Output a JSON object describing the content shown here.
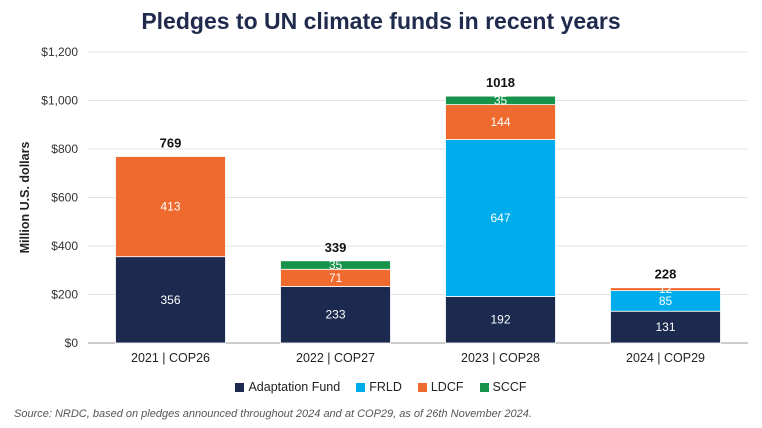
{
  "chart_data": {
    "type": "bar",
    "stacked": true,
    "title": "Pledges to UN climate funds in recent years",
    "ylabel": "Million U.S. dollars",
    "xlabel": "",
    "ylim": [
      0,
      1200
    ],
    "yticks": [
      0,
      200,
      400,
      600,
      800,
      1000,
      1200
    ],
    "ytick_labels": [
      "$0",
      "$200",
      "$400",
      "$600",
      "$800",
      "$1,000",
      "$1,200"
    ],
    "categories": [
      "2021 | COP26",
      "2022 | COP27",
      "2023 | COP28",
      "2024 | COP29"
    ],
    "series": [
      {
        "name": "Adaptation Fund",
        "color": "#1b2a4e",
        "values": [
          356,
          233,
          192,
          131
        ],
        "labels": [
          "356",
          "233",
          "192",
          "131"
        ]
      },
      {
        "name": "FRLD",
        "color": "#00adec",
        "values": [
          0,
          0,
          647,
          85
        ],
        "labels": [
          "",
          "",
          "647",
          "85"
        ]
      },
      {
        "name": "LDCF",
        "color": "#ef6a2e",
        "values": [
          413,
          71,
          144,
          12
        ],
        "labels": [
          "413",
          "71",
          "144",
          "12"
        ]
      },
      {
        "name": "SCCF",
        "color": "#15934a",
        "values": [
          0,
          35,
          35,
          0
        ],
        "labels": [
          "",
          "35",
          "35",
          ""
        ]
      }
    ],
    "totals": [
      "769",
      "339",
      "1018",
      "228"
    ],
    "grid": true,
    "legend_position": "bottom"
  },
  "source": "Source: NRDC, based on pledges announced throughout 2024 and at COP29, as of 26th November 2024."
}
